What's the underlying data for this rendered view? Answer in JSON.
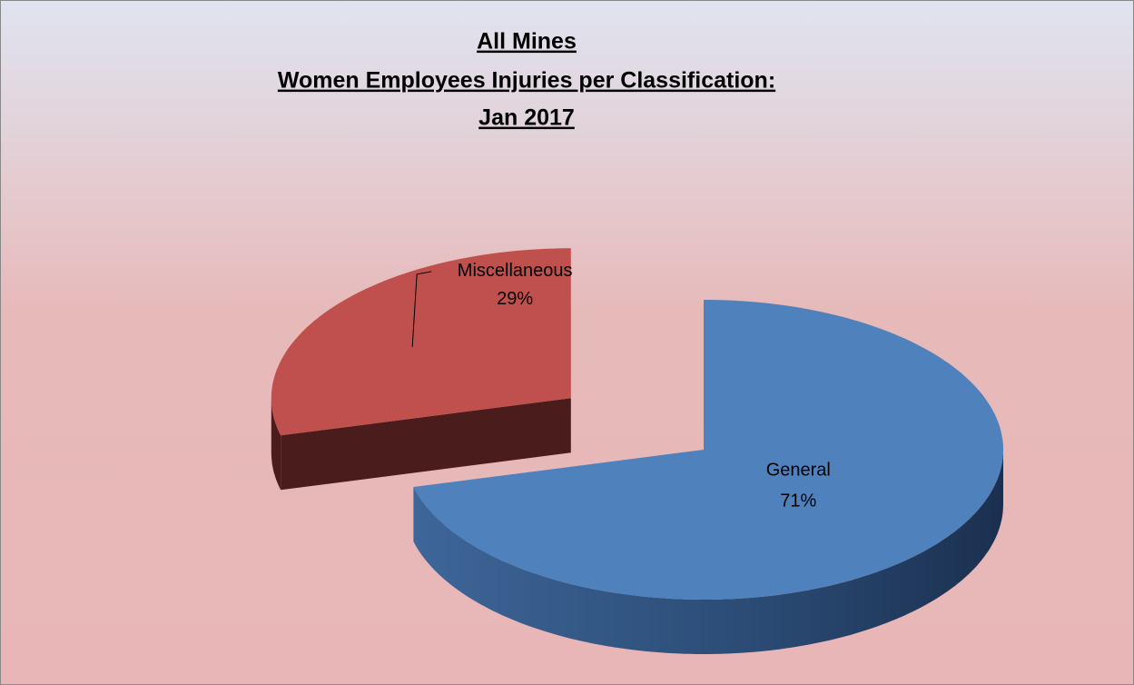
{
  "chart_data": {
    "type": "pie",
    "title": [
      "All Mines",
      "Women Employees Injuries per Classification:",
      "Jan 2017"
    ],
    "categories": [
      "General",
      "Miscellaneous"
    ],
    "values": [
      71,
      29
    ],
    "value_labels": [
      "71%",
      "29%"
    ],
    "colors": [
      "#4f81bd",
      "#c0504d"
    ],
    "exploded": [
      false,
      true
    ]
  }
}
